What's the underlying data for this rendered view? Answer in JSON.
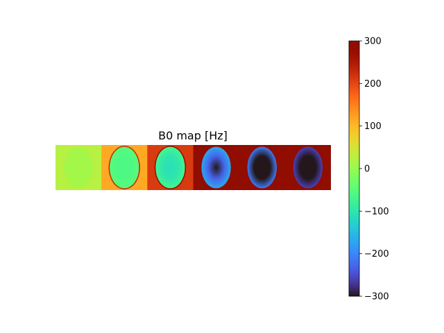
{
  "chart_data": {
    "type": "heatmap",
    "title": "B0 map [Hz]",
    "colormap": "turbo",
    "colorbar": {
      "vmin": -300,
      "vmax": 300,
      "ticks": [
        300,
        200,
        100,
        0,
        -100,
        -200,
        -300
      ],
      "tick_labels": [
        "300",
        "200",
        "100",
        "0",
        "−100",
        "−200",
        "−300"
      ]
    },
    "panels": [
      {
        "background_hz": 25,
        "inside_hz": 10,
        "rim_hz": 40,
        "center_hz": 10,
        "edge_hz": 10
      },
      {
        "background_hz": 115,
        "inside_hz": -60,
        "rim_hz": 230,
        "center_hz": -60,
        "edge_hz": -50
      },
      {
        "background_hz": 210,
        "inside_hz": -100,
        "rim_hz": 320,
        "center_hz": -110,
        "edge_hz": -70
      },
      {
        "background_hz": 300,
        "inside_hz": -230,
        "rim_hz": 300,
        "center_hz": -300,
        "edge_hz": -170
      },
      {
        "background_hz": 300,
        "inside_hz": -300,
        "rim_hz": 300,
        "center_hz": -300,
        "edge_hz": -210
      },
      {
        "background_hz": 300,
        "inside_hz": -300,
        "rim_hz": 300,
        "center_hz": -300,
        "edge_hz": -260
      }
    ]
  }
}
